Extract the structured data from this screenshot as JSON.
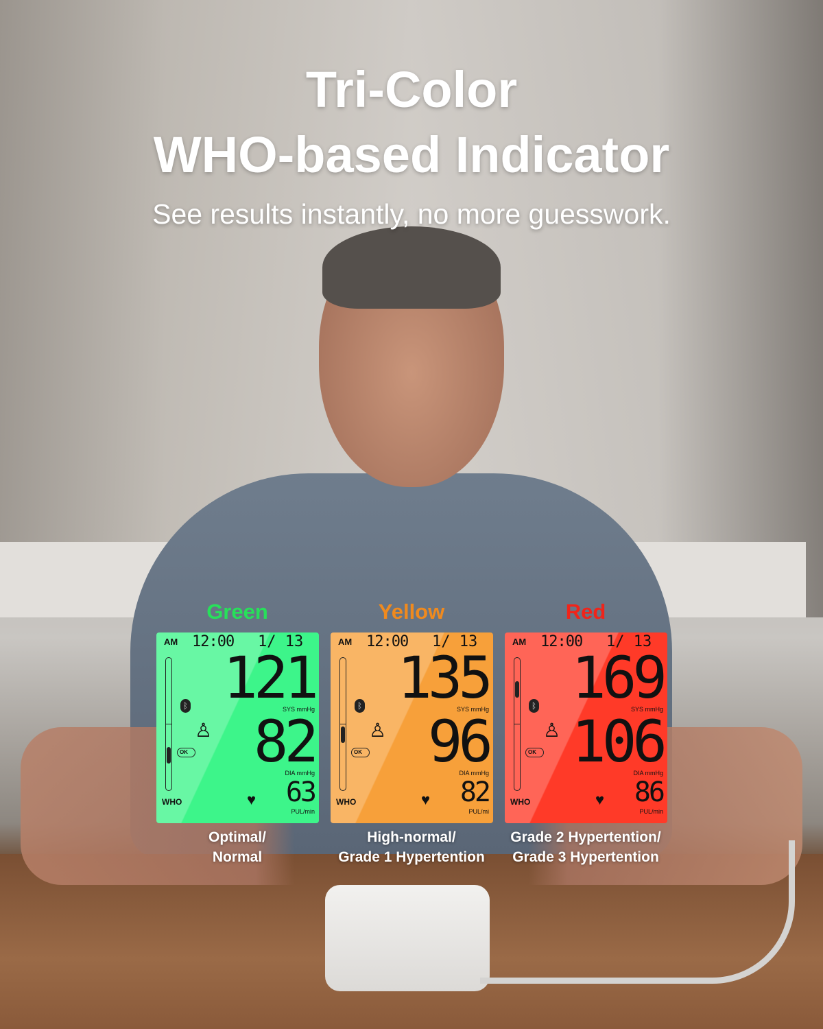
{
  "header": {
    "title_line1": "Tri-Color",
    "title_line2": "WHO-based Indicator",
    "subtitle": "See results instantly, no more guesswork."
  },
  "indicators": [
    {
      "color_name": "Green",
      "color": "#27e05a",
      "screen_color": "#3df58a",
      "am": "AM",
      "time": "12:00",
      "date": "1/ 13",
      "sys": "121",
      "sys_unit": "SYS mmHg",
      "dia": "82",
      "dia_unit": "DIA mmHg",
      "pulse": "63",
      "pulse_unit": "PUL/min",
      "who_label": "WHO",
      "who_level": 2,
      "ok": "OK",
      "caption_line1": "Optimal/",
      "caption_line2": "Normal"
    },
    {
      "color_name": "Yellow",
      "color": "#f08a1e",
      "screen_color": "#f7a03a",
      "am": "AM",
      "time": "12:00",
      "date": "1/ 13",
      "sys": "135",
      "sys_unit": "SYS mmHg",
      "dia": "96",
      "dia_unit": "DIA mmHg",
      "pulse": "82",
      "pulse_unit": "PUL/mi",
      "who_label": "WHO",
      "who_level": 3,
      "ok": "OK",
      "caption_line1": "High-normal/",
      "caption_line2": "Grade 1 Hypertention"
    },
    {
      "color_name": "Red",
      "color": "#f0241a",
      "screen_color": "#ff3a28",
      "am": "AM",
      "time": "12:00",
      "date": "1/ 13",
      "sys": "169",
      "sys_unit": "SYS mmHg",
      "dia": "106",
      "dia_unit": "DIA mmHg",
      "pulse": "86",
      "pulse_unit": "PUL/min",
      "who_label": "WHO",
      "who_level": 5,
      "ok": "OK",
      "caption_line1": "Grade 2 Hypertention/",
      "caption_line2": "Grade 3 Hypertention"
    }
  ]
}
